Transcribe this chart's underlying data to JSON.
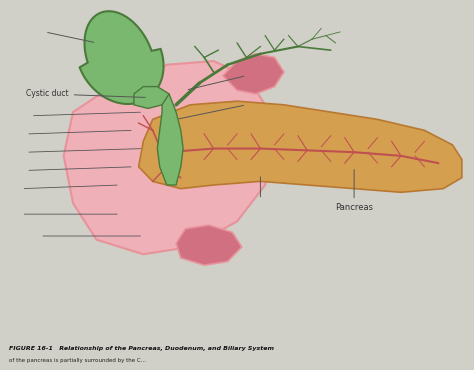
{
  "bg_color": "#d0cfc8",
  "title": "FIGURE 16-1   Relationship of the Pancreas, Duodenum, and Biliary System",
  "subtitle": "of the pancreas is partially surrounded by the C...",
  "pink_duodenum": "#e8929a",
  "pink_light": "#f0b0b8",
  "pink_tube": "#d07080",
  "green_gb": "#7ab870",
  "dark_green": "#4a7a3a",
  "orange_panc": "#d4a050",
  "orange_dark": "#b87830",
  "red_vessels": "#c05050",
  "label_cystic_duct": "Cystic duct",
  "label_pancreas": "Pancreas",
  "text_color": "#333333",
  "line_color": "#555555"
}
